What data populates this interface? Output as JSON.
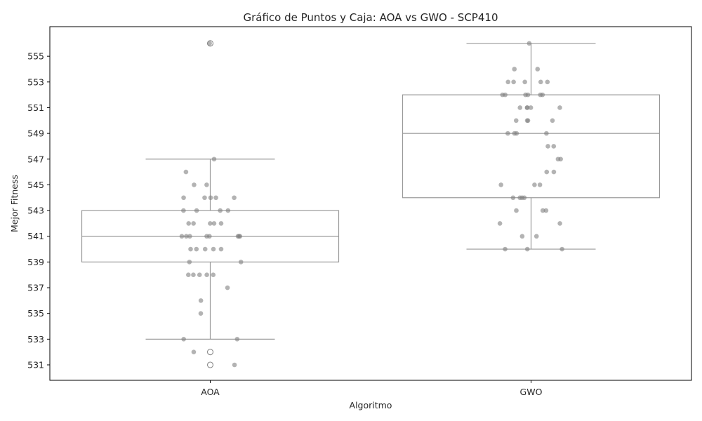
{
  "chart_data": {
    "type": "box",
    "title": "Gráfico de Puntos y Caja: AOA vs GWO - SCP410",
    "xlabel": "Algoritmo",
    "ylabel": "Mejor Fitness",
    "ylim": [
      529.8,
      557.3
    ],
    "yticks": [
      531,
      533,
      535,
      537,
      539,
      541,
      543,
      545,
      547,
      549,
      551,
      553,
      555
    ],
    "grid": false,
    "colors": {
      "box": "#999999",
      "points": "#808080",
      "frame": "#000000"
    },
    "categories": [
      "AOA",
      "GWO"
    ],
    "boxes": [
      {
        "name": "AOA",
        "whisker_low": 533,
        "q1": 539,
        "median": 541,
        "q3": 543,
        "whisker_high": 547,
        "outliers": [
          556,
          532,
          531
        ]
      },
      {
        "name": "GWO",
        "whisker_low": 540,
        "q1": 544,
        "median": 549,
        "q3": 552,
        "whisker_high": 556,
        "outliers": []
      }
    ],
    "points": [
      {
        "category": "AOA",
        "values": [
          556,
          547,
          546,
          545,
          545,
          544,
          544,
          544,
          544,
          544,
          543,
          543,
          543,
          543,
          542,
          542,
          542,
          542,
          542,
          541,
          541,
          541,
          541,
          541,
          541,
          541,
          541,
          540,
          540,
          540,
          540,
          540,
          539,
          539,
          538,
          538,
          538,
          538,
          538,
          537,
          536,
          535,
          533,
          533,
          532,
          531
        ]
      },
      {
        "category": "GWO",
        "values": [
          556,
          554,
          554,
          553,
          553,
          553,
          553,
          553,
          552,
          552,
          552,
          552,
          552,
          552,
          551,
          551,
          551,
          551,
          551,
          550,
          550,
          550,
          550,
          549,
          549,
          549,
          549,
          548,
          548,
          547,
          547,
          546,
          546,
          545,
          545,
          545,
          544,
          544,
          544,
          544,
          543,
          543,
          543,
          542,
          542,
          541,
          541,
          540,
          540,
          540
        ]
      }
    ]
  }
}
